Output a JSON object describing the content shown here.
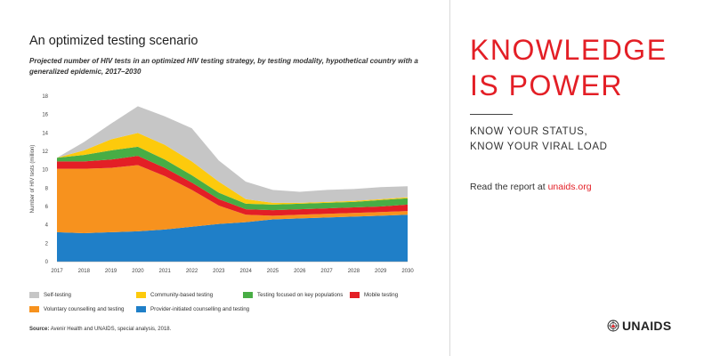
{
  "chart_data": {
    "type": "area",
    "stacked": true,
    "title": "An optimized testing scenario",
    "subtitle": "Projected number of HIV tests in an optimized HIV testing strategy, by testing modality, hypothetical country with a generalized epidemic, 2017–2030",
    "ylabel": "Number of HIV tests (million)",
    "xlabel": "",
    "ylim": [
      0,
      18
    ],
    "yticks": [
      "0",
      "2",
      "4",
      "6",
      "8",
      "10",
      "12",
      "14",
      "16",
      "18"
    ],
    "x": [
      "2017",
      "2018",
      "2019",
      "2020",
      "2021",
      "2022",
      "2023",
      "2024",
      "2025",
      "2026",
      "2027",
      "2028",
      "2029",
      "2030"
    ],
    "grid": false,
    "legend_position": "bottom",
    "series": [
      {
        "name": "Provider-initiated counselling and testing",
        "color": "#1f7fc8",
        "values": [
          3.2,
          3.1,
          3.2,
          3.3,
          3.5,
          3.8,
          4.1,
          4.3,
          4.6,
          4.7,
          4.8,
          4.9,
          5.0,
          5.1
        ]
      },
      {
        "name": "Voluntary counselling and testing",
        "color": "#f7921e",
        "values": [
          6.9,
          7.0,
          7.0,
          7.2,
          5.8,
          4.0,
          2.0,
          0.8,
          0.4,
          0.4,
          0.4,
          0.4,
          0.4,
          0.4
        ]
      },
      {
        "name": "Mobile testing",
        "color": "#e31f26",
        "values": [
          0.8,
          0.8,
          0.9,
          1.0,
          0.9,
          0.8,
          0.7,
          0.6,
          0.6,
          0.6,
          0.6,
          0.6,
          0.6,
          0.7
        ]
      },
      {
        "name": "Testing focused on key populations",
        "color": "#48ad45",
        "values": [
          0.4,
          0.7,
          1.0,
          1.0,
          0.9,
          0.8,
          0.7,
          0.6,
          0.6,
          0.6,
          0.6,
          0.6,
          0.7,
          0.7
        ]
      },
      {
        "name": "Community-based testing",
        "color": "#fdca0c",
        "values": [
          0.0,
          0.5,
          1.2,
          1.5,
          1.6,
          1.5,
          1.2,
          0.5,
          0.2,
          0.1,
          0.1,
          0.1,
          0.1,
          0.1
        ]
      },
      {
        "name": "Self-testing",
        "color": "#c6c6c6",
        "values": [
          0.0,
          0.9,
          1.7,
          2.9,
          3.1,
          3.6,
          2.3,
          1.9,
          1.4,
          1.2,
          1.3,
          1.3,
          1.3,
          1.2
        ]
      }
    ],
    "legend_order": [
      "Self-testing",
      "Community-based testing",
      "Testing focused on key populations",
      "Mobile testing",
      "Voluntary counselling and testing",
      "Provider-initiated counselling and testing"
    ]
  },
  "source": {
    "label": "Source:",
    "text": "Avenir Health and UNAIDS, special analysis, 2018."
  },
  "panel": {
    "headline_line1": "KNOWLEDGE",
    "headline_line2": "IS POWER",
    "tagline_line1": "KNOW YOUR STATUS,",
    "tagline_line2": "KNOW YOUR VIRAL LOAD",
    "report_text": "Read the report at ",
    "report_link": "unaids.org",
    "accent_color": "#e31f26"
  },
  "logo": {
    "text": "UNAIDS",
    "icon": "un-emblem-icon"
  }
}
